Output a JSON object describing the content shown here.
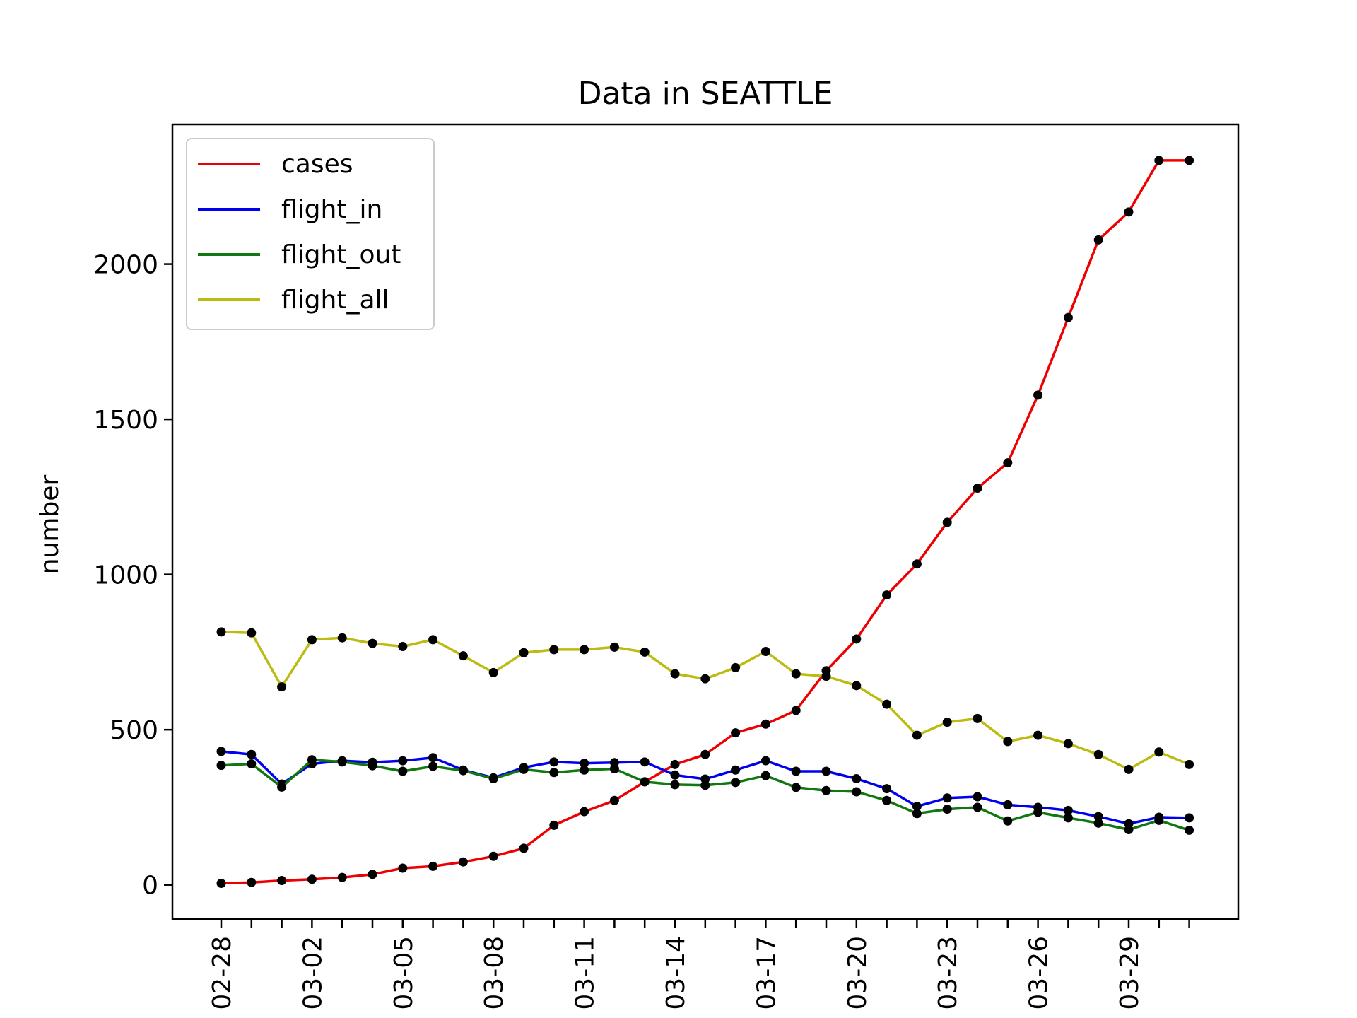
{
  "chart_data": {
    "type": "line",
    "title": "Data in SEATTLE",
    "xlabel": "",
    "ylabel": "number",
    "x": [
      "02-28",
      "02-29",
      "03-01",
      "03-02",
      "03-03",
      "03-04",
      "03-05",
      "03-06",
      "03-07",
      "03-08",
      "03-09",
      "03-10",
      "03-11",
      "03-12",
      "03-13",
      "03-14",
      "03-15",
      "03-16",
      "03-17",
      "03-18",
      "03-19",
      "03-20",
      "03-21",
      "03-22",
      "03-23",
      "03-24",
      "03-25",
      "03-26",
      "03-27",
      "03-28",
      "03-29",
      "03-30",
      "03-31"
    ],
    "xtick_labels": [
      "02-28",
      "03-02",
      "03-05",
      "03-08",
      "03-11",
      "03-14",
      "03-17",
      "03-20",
      "03-23",
      "03-26",
      "03-29"
    ],
    "ylim": [
      -110,
      2450
    ],
    "yticks": [
      0,
      500,
      1000,
      1500,
      2000
    ],
    "legend_position": "upper-left",
    "grid": false,
    "marker_color": "#000000",
    "series": [
      {
        "name": "cases",
        "color": "#ee0000",
        "values": [
          5,
          8,
          14,
          18,
          24,
          34,
          54,
          60,
          74,
          92,
          118,
          192,
          236,
          272,
          332,
          388,
          420,
          490,
          518,
          562,
          690,
          792,
          934,
          1034,
          1168,
          1278,
          1360,
          1578,
          1828,
          2078,
          2168,
          2334,
          2334
        ]
      },
      {
        "name": "flight_in",
        "color": "#0000ee",
        "values": [
          430,
          420,
          325,
          390,
          400,
          395,
          400,
          410,
          370,
          345,
          378,
          396,
          392,
          394,
          396,
          354,
          341,
          370,
          400,
          366,
          366,
          342,
          310,
          253,
          280,
          284,
          258,
          250,
          240,
          220,
          197,
          218,
          216
        ]
      },
      {
        "name": "flight_out",
        "color": "#117711",
        "values": [
          385,
          390,
          315,
          403,
          396,
          384,
          366,
          382,
          368,
          342,
          372,
          362,
          370,
          374,
          332,
          323,
          321,
          330,
          352,
          314,
          304,
          300,
          272,
          230,
          244,
          250,
          206,
          234,
          216,
          199,
          178,
          208,
          176
        ]
      },
      {
        "name": "flight_all",
        "color": "#bbbb11",
        "values": [
          815,
          812,
          638,
          790,
          796,
          778,
          768,
          790,
          738,
          684,
          748,
          758,
          758,
          766,
          750,
          680,
          664,
          700,
          752,
          680,
          672,
          642,
          582,
          482,
          524,
          536,
          462,
          482,
          455,
          420,
          372,
          428,
          388
        ]
      }
    ]
  }
}
